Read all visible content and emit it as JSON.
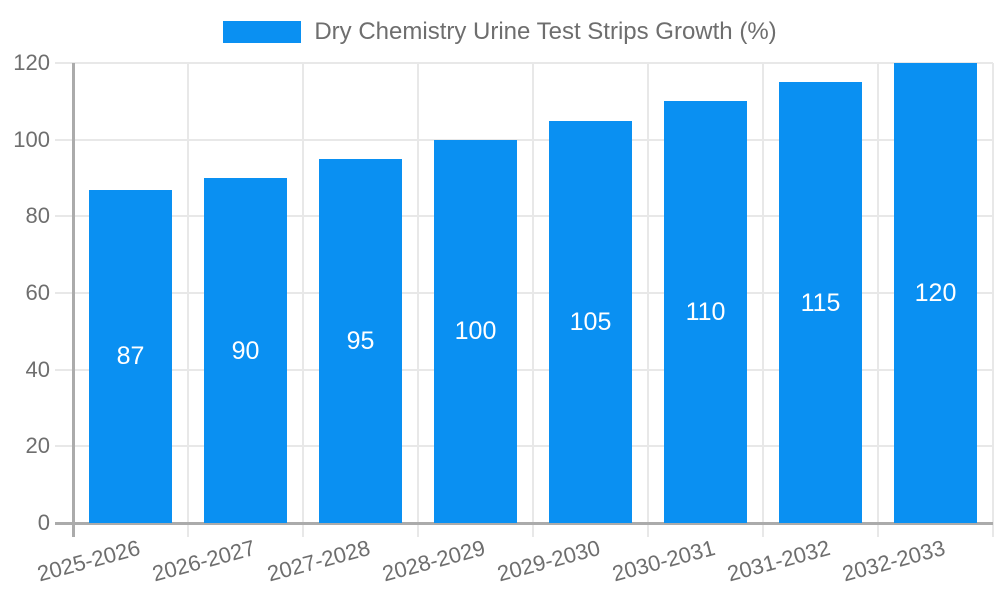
{
  "legend": {
    "label": "Dry Chemistry Urine Test Strips Growth (%)"
  },
  "colors": {
    "bar": "#0A90F2",
    "grid": "#E8E8E8",
    "axis": "#ABABAB",
    "tick_text": "#6E6E6E",
    "legend_text": "#6E6E6E",
    "value_label": "#FFFFFF",
    "background": "#FFFFFF"
  },
  "chart_data": {
    "type": "bar",
    "title": "Dry Chemistry Urine Test Strips Growth (%)",
    "legend": [
      "Dry Chemistry Urine Test Strips Growth (%)"
    ],
    "legend_position": "top-center",
    "categories": [
      "2025-2026",
      "2026-2027",
      "2027-2028",
      "2028-2029",
      "2029-2030",
      "2030-2031",
      "2031-2032",
      "2032-2033"
    ],
    "values": [
      87,
      90,
      95,
      100,
      105,
      110,
      115,
      120
    ],
    "value_labels": [
      "87",
      "90",
      "95",
      "100",
      "105",
      "110",
      "115",
      "120"
    ],
    "value_label_position": "inside-middle",
    "xlabel": "",
    "ylabel": "",
    "ylim": [
      0,
      120
    ],
    "yticks": [
      0,
      20,
      40,
      60,
      80,
      100,
      120
    ],
    "grid": true,
    "x_tick_rotation_deg": -15
  }
}
